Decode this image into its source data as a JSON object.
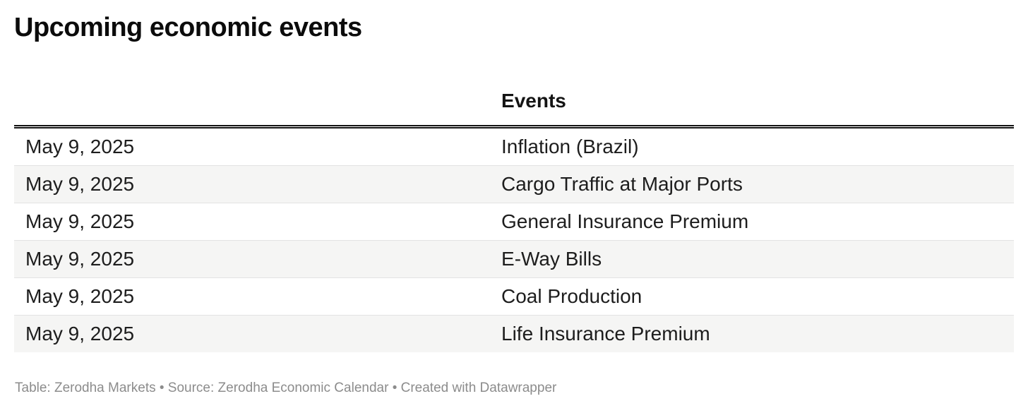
{
  "page": {
    "title": "Upcoming economic events"
  },
  "chart_data": {
    "type": "table",
    "title": "Upcoming economic events",
    "columns": [
      "",
      "Events"
    ],
    "rows": [
      [
        "May 9, 2025",
        "Inflation (Brazil)"
      ],
      [
        "May 9, 2025",
        "Cargo Traffic at Major Ports"
      ],
      [
        "May 9, 2025",
        "General Insurance Premium"
      ],
      [
        "May 9, 2025",
        "E-Way Bills"
      ],
      [
        "May 9, 2025",
        "Coal Production"
      ],
      [
        "May 9, 2025",
        "Life Insurance Premium"
      ]
    ],
    "striped_rows": true,
    "footnote": "Table: Zerodha Markets • Source: Zerodha Economic Calendar • Created with Datawrapper"
  },
  "table": {
    "header": {
      "date_label": "",
      "events_label": "Events"
    },
    "rows": [
      {
        "date": "May 9, 2025",
        "event": "Inflation (Brazil)"
      },
      {
        "date": "May 9, 2025",
        "event": "Cargo Traffic at Major Ports"
      },
      {
        "date": "May 9, 2025",
        "event": "General Insurance Premium"
      },
      {
        "date": "May 9, 2025",
        "event": "E-Way Bills"
      },
      {
        "date": "May 9, 2025",
        "event": "Coal Production"
      },
      {
        "date": "May 9, 2025",
        "event": "Life Insurance Premium"
      }
    ]
  },
  "footer": {
    "text": "Table: Zerodha Markets • Source: Zerodha Economic Calendar • Created with Datawrapper"
  },
  "colors": {
    "background": "#ffffff",
    "title_text": "#0b0b0b",
    "body_text": "#1d1d1d",
    "header_rule": "#141414",
    "row_stripe": "#f5f5f4",
    "row_divider": "#e3e3e3",
    "footer_text": "#8c8c8c"
  }
}
